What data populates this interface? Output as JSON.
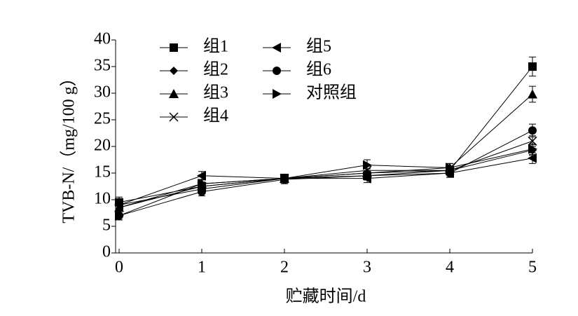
{
  "chart_data": {
    "type": "line",
    "x_label": "贮藏时间/d",
    "y_label": "TVB-N/（mg/100 g）",
    "x": [
      0,
      1,
      2,
      3,
      4,
      5
    ],
    "xlim": [
      0,
      5
    ],
    "xticks": [
      0,
      1,
      2,
      3,
      4,
      5
    ],
    "ylim": [
      0,
      40
    ],
    "yticks": [
      0,
      5,
      10,
      15,
      20,
      25,
      30,
      35,
      40
    ],
    "grid": false,
    "legend": "upper-left",
    "series": [
      {
        "name": "组1",
        "color": "#000000",
        "marker": "square",
        "values": [
          9.5,
          12.5,
          14,
          14.5,
          15.5,
          35
        ],
        "errors": [
          1,
          0.8,
          0.8,
          0.8,
          0.8,
          1.8
        ]
      },
      {
        "name": "组2",
        "color": "#000000",
        "marker": "diamond",
        "values": [
          9,
          12,
          14,
          15,
          15.5,
          19.3
        ],
        "errors": [
          1,
          0.8,
          0.8,
          0.8,
          0.8,
          1
        ]
      },
      {
        "name": "组3",
        "color": "#000000",
        "marker": "triangle-up",
        "values": [
          8.5,
          13,
          14,
          15,
          16,
          29.8
        ],
        "errors": [
          1,
          0.8,
          0.8,
          0.8,
          0.8,
          1.5
        ]
      },
      {
        "name": "组4",
        "color": "#000000",
        "marker": "x",
        "values": [
          8.5,
          12.5,
          14,
          15.5,
          15.5,
          21
        ],
        "errors": [
          1,
          0.8,
          0.8,
          0.8,
          0.8,
          1
        ]
      },
      {
        "name": "组5",
        "color": "#000000",
        "marker": "triangle-left",
        "values": [
          9,
          14.5,
          14,
          14,
          15,
          17.8
        ],
        "errors": [
          1,
          0.8,
          0.8,
          0.8,
          0.8,
          1
        ]
      },
      {
        "name": "组6",
        "color": "#000000",
        "marker": "circle",
        "values": [
          7,
          11.5,
          13.8,
          14.5,
          15,
          23
        ],
        "errors": [
          0.8,
          0.8,
          0.8,
          0.8,
          0.8,
          1.2
        ]
      },
      {
        "name": "对照组",
        "color": "#000000",
        "marker": "triangle-right",
        "values": [
          7,
          13,
          14,
          16.5,
          16,
          19.5
        ],
        "errors": [
          0.8,
          0.8,
          0.8,
          1,
          0.8,
          1
        ]
      }
    ]
  }
}
